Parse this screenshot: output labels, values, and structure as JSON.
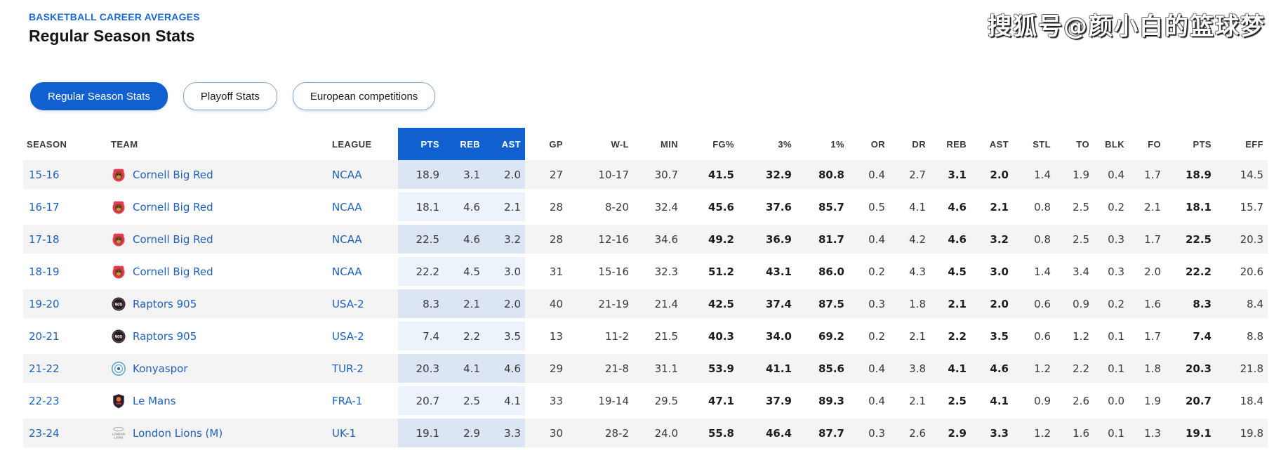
{
  "header": {
    "eyebrow": "BASKETBALL CAREER AVERAGES",
    "title": "Regular Season Stats"
  },
  "watermark": {
    "text": "搜狐号@颜小白的篮球梦"
  },
  "tabs": [
    {
      "label": "Regular Season Stats",
      "active": true
    },
    {
      "label": "Playoff Stats",
      "active": false
    },
    {
      "label": "European competitions",
      "active": false
    }
  ],
  "colors": {
    "accent_blue": "#1160cf",
    "link_blue": "#2061ba",
    "row_stripe_gray": "#f4f4f5",
    "highlight_cell_on_stripe": "#dbe5f3",
    "highlight_cell_on_white": "#edf3fb"
  },
  "table": {
    "columns": [
      {
        "key": "season",
        "label": "SEASON",
        "text": true
      },
      {
        "key": "team",
        "label": "TEAM",
        "text": true
      },
      {
        "key": "league",
        "label": "LEAGUE",
        "text": true
      },
      {
        "key": "pts",
        "label": "PTS",
        "highlight": true
      },
      {
        "key": "reb",
        "label": "REB",
        "highlight": true
      },
      {
        "key": "ast",
        "label": "AST",
        "highlight": true
      },
      {
        "key": "gp",
        "label": "GP"
      },
      {
        "key": "wl",
        "label": "W-L"
      },
      {
        "key": "min",
        "label": "MIN"
      },
      {
        "key": "fg",
        "label": "FG%",
        "bold": true
      },
      {
        "key": "tp",
        "label": "3%",
        "bold": true
      },
      {
        "key": "ft",
        "label": "1%",
        "bold": true
      },
      {
        "key": "or",
        "label": "OR"
      },
      {
        "key": "dr",
        "label": "DR"
      },
      {
        "key": "reb2",
        "label": "REB",
        "bold": true
      },
      {
        "key": "ast2",
        "label": "AST",
        "bold": true
      },
      {
        "key": "stl",
        "label": "STL"
      },
      {
        "key": "to",
        "label": "TO"
      },
      {
        "key": "blk",
        "label": "BLK"
      },
      {
        "key": "fo",
        "label": "FO"
      },
      {
        "key": "pts2",
        "label": "PTS",
        "bold": true
      },
      {
        "key": "eff",
        "label": "EFF"
      }
    ],
    "rows": [
      {
        "season": "15-16",
        "team": "Cornell Big Red",
        "logo": "cornell-big-red-logo",
        "league": "NCAA",
        "values": {
          "pts": "18.9",
          "reb": "3.1",
          "ast": "2.0",
          "gp": "27",
          "wl": "10-17",
          "min": "30.7",
          "fg": "41.5",
          "tp": "32.9",
          "ft": "80.8",
          "or": "0.4",
          "dr": "2.7",
          "reb2": "3.1",
          "ast2": "2.0",
          "stl": "1.4",
          "to": "1.9",
          "blk": "0.4",
          "fo": "1.7",
          "pts2": "18.9",
          "eff": "14.5"
        }
      },
      {
        "season": "16-17",
        "team": "Cornell Big Red",
        "logo": "cornell-big-red-logo",
        "league": "NCAA",
        "values": {
          "pts": "18.1",
          "reb": "4.6",
          "ast": "2.1",
          "gp": "28",
          "wl": "8-20",
          "min": "32.4",
          "fg": "45.6",
          "tp": "37.6",
          "ft": "85.7",
          "or": "0.5",
          "dr": "4.1",
          "reb2": "4.6",
          "ast2": "2.1",
          "stl": "0.8",
          "to": "2.5",
          "blk": "0.2",
          "fo": "2.1",
          "pts2": "18.1",
          "eff": "15.7"
        }
      },
      {
        "season": "17-18",
        "team": "Cornell Big Red",
        "logo": "cornell-big-red-logo",
        "league": "NCAA",
        "values": {
          "pts": "22.5",
          "reb": "4.6",
          "ast": "3.2",
          "gp": "28",
          "wl": "12-16",
          "min": "34.6",
          "fg": "49.2",
          "tp": "36.9",
          "ft": "81.7",
          "or": "0.4",
          "dr": "4.2",
          "reb2": "4.6",
          "ast2": "3.2",
          "stl": "0.8",
          "to": "2.5",
          "blk": "0.3",
          "fo": "1.7",
          "pts2": "22.5",
          "eff": "20.3"
        }
      },
      {
        "season": "18-19",
        "team": "Cornell Big Red",
        "logo": "cornell-big-red-logo",
        "league": "NCAA",
        "values": {
          "pts": "22.2",
          "reb": "4.5",
          "ast": "3.0",
          "gp": "31",
          "wl": "15-16",
          "min": "32.3",
          "fg": "51.2",
          "tp": "43.1",
          "ft": "86.0",
          "or": "0.2",
          "dr": "4.3",
          "reb2": "4.5",
          "ast2": "3.0",
          "stl": "1.4",
          "to": "3.4",
          "blk": "0.3",
          "fo": "2.0",
          "pts2": "22.2",
          "eff": "20.6"
        }
      },
      {
        "season": "19-20",
        "team": "Raptors 905",
        "logo": "raptors-905-logo",
        "league": "USA-2",
        "values": {
          "pts": "8.3",
          "reb": "2.1",
          "ast": "2.0",
          "gp": "40",
          "wl": "21-19",
          "min": "21.4",
          "fg": "42.5",
          "tp": "37.4",
          "ft": "87.5",
          "or": "0.3",
          "dr": "1.8",
          "reb2": "2.1",
          "ast2": "2.0",
          "stl": "0.6",
          "to": "0.9",
          "blk": "0.2",
          "fo": "1.6",
          "pts2": "8.3",
          "eff": "8.4"
        }
      },
      {
        "season": "20-21",
        "team": "Raptors 905",
        "logo": "raptors-905-logo",
        "league": "USA-2",
        "values": {
          "pts": "7.4",
          "reb": "2.2",
          "ast": "3.5",
          "gp": "13",
          "wl": "11-2",
          "min": "21.5",
          "fg": "40.3",
          "tp": "34.0",
          "ft": "69.2",
          "or": "0.2",
          "dr": "2.1",
          "reb2": "2.2",
          "ast2": "3.5",
          "stl": "0.6",
          "to": "1.2",
          "blk": "0.1",
          "fo": "1.7",
          "pts2": "7.4",
          "eff": "8.8"
        }
      },
      {
        "season": "21-22",
        "team": "Konyaspor",
        "logo": "konyaspor-logo",
        "league": "TUR-2",
        "values": {
          "pts": "20.3",
          "reb": "4.1",
          "ast": "4.6",
          "gp": "29",
          "wl": "21-8",
          "min": "31.1",
          "fg": "53.9",
          "tp": "41.1",
          "ft": "85.6",
          "or": "0.4",
          "dr": "3.8",
          "reb2": "4.1",
          "ast2": "4.6",
          "stl": "1.2",
          "to": "2.2",
          "blk": "0.1",
          "fo": "1.8",
          "pts2": "20.3",
          "eff": "21.8"
        }
      },
      {
        "season": "22-23",
        "team": "Le Mans",
        "logo": "le-mans-logo",
        "league": "FRA-1",
        "values": {
          "pts": "20.7",
          "reb": "2.5",
          "ast": "4.1",
          "gp": "33",
          "wl": "19-14",
          "min": "29.5",
          "fg": "47.1",
          "tp": "37.9",
          "ft": "89.3",
          "or": "0.4",
          "dr": "2.1",
          "reb2": "2.5",
          "ast2": "4.1",
          "stl": "0.9",
          "to": "2.6",
          "blk": "0.0",
          "fo": "1.9",
          "pts2": "20.7",
          "eff": "18.4"
        }
      },
      {
        "season": "23-24",
        "team": "London Lions (M)",
        "logo": "london-lions-logo",
        "league": "UK-1",
        "values": {
          "pts": "19.1",
          "reb": "2.9",
          "ast": "3.3",
          "gp": "30",
          "wl": "28-2",
          "min": "24.0",
          "fg": "55.8",
          "tp": "46.4",
          "ft": "87.7",
          "or": "0.3",
          "dr": "2.6",
          "reb2": "2.9",
          "ast2": "3.3",
          "stl": "1.2",
          "to": "1.6",
          "blk": "0.1",
          "fo": "1.3",
          "pts2": "19.1",
          "eff": "19.8"
        }
      }
    ]
  }
}
